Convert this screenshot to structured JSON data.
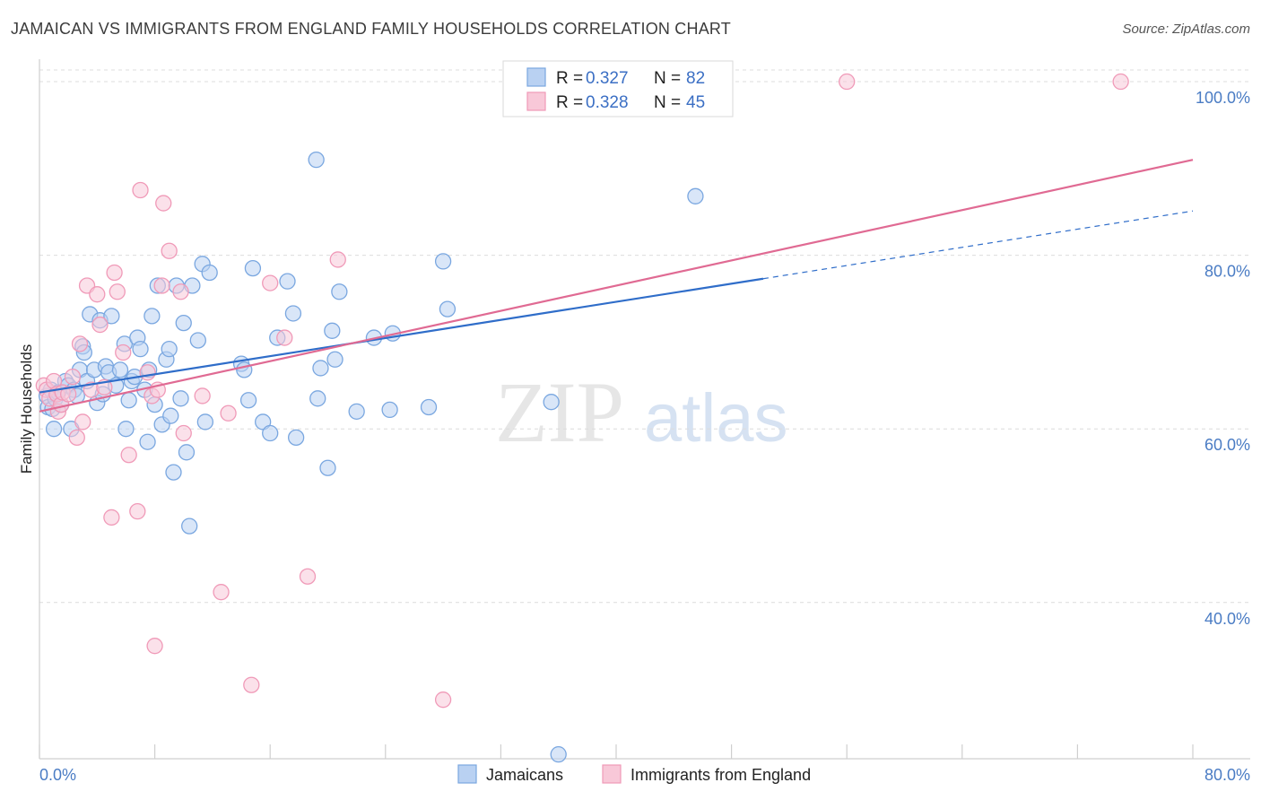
{
  "title": "JAMAICAN VS IMMIGRANTS FROM ENGLAND FAMILY HOUSEHOLDS CORRELATION CHART",
  "source": "Source: ZipAtlas.com",
  "colors": {
    "blue": "#7aa7e0",
    "blue_fill": "#b9d1f2",
    "blue_line": "#2f6dc9",
    "pink": "#f09ab8",
    "pink_fill": "#f8c8d8",
    "pink_line": "#e06a93",
    "tick_text": "#4a7cc4",
    "grid": "#dcdcdc"
  },
  "legend": {
    "rows": [
      {
        "r_label": "R =",
        "r_value": "0.327",
        "n_label": "N =",
        "n_value": "82"
      },
      {
        "r_label": "R =",
        "r_value": "0.328",
        "n_label": "N =",
        "n_value": "45"
      }
    ]
  },
  "watermark": {
    "zip": "ZIP",
    "atlas": "atlas"
  },
  "chart_data": {
    "type": "scatter",
    "title": "JAMAICAN VS IMMIGRANTS FROM ENGLAND FAMILY HOUSEHOLDS CORRELATION CHART",
    "xlabel": "",
    "ylabel": "Family Households",
    "xlim": [
      0,
      80
    ],
    "ylim": [
      22,
      103
    ],
    "x_tick_labels": [
      "0.0%",
      "80.0%"
    ],
    "y_ticks": [
      40,
      60,
      80,
      100
    ],
    "y_tick_labels": [
      "40.0%",
      "60.0%",
      "80.0%",
      "100.0%"
    ],
    "grid": true,
    "legend_position": "top-center",
    "series": [
      {
        "name": "Jamaicans",
        "trend": {
          "x0": 0,
          "y0": 64.2,
          "x1": 50.2,
          "y1": 77.3,
          "dashed_to_x": 80,
          "dashed_to_y": 85.1
        },
        "points": [
          [
            0.5,
            63.8
          ],
          [
            0.6,
            62.5
          ],
          [
            0.8,
            64.5
          ],
          [
            0.9,
            62.3
          ],
          [
            1.0,
            60.0
          ],
          [
            1.1,
            63.5
          ],
          [
            1.3,
            64.2
          ],
          [
            1.5,
            62.8
          ],
          [
            1.8,
            65.5
          ],
          [
            2.0,
            65.0
          ],
          [
            2.2,
            60.0
          ],
          [
            2.4,
            64.5
          ],
          [
            2.6,
            63.8
          ],
          [
            2.8,
            66.8
          ],
          [
            3.0,
            69.5
          ],
          [
            3.1,
            68.8
          ],
          [
            3.3,
            65.5
          ],
          [
            3.5,
            73.2
          ],
          [
            3.8,
            66.8
          ],
          [
            4.0,
            63.0
          ],
          [
            4.2,
            72.5
          ],
          [
            4.4,
            64.0
          ],
          [
            4.6,
            67.2
          ],
          [
            4.8,
            66.5
          ],
          [
            5.0,
            73.0
          ],
          [
            5.3,
            65.0
          ],
          [
            5.6,
            66.8
          ],
          [
            5.9,
            69.8
          ],
          [
            6.0,
            60.0
          ],
          [
            6.2,
            63.3
          ],
          [
            6.4,
            65.5
          ],
          [
            6.6,
            66.0
          ],
          [
            6.8,
            70.5
          ],
          [
            7.0,
            69.2
          ],
          [
            7.3,
            64.5
          ],
          [
            7.5,
            58.5
          ],
          [
            7.6,
            66.8
          ],
          [
            7.8,
            73.0
          ],
          [
            8.0,
            62.8
          ],
          [
            8.2,
            76.5
          ],
          [
            8.5,
            60.5
          ],
          [
            8.8,
            68.0
          ],
          [
            9.0,
            69.2
          ],
          [
            9.1,
            61.5
          ],
          [
            9.3,
            55.0
          ],
          [
            9.5,
            76.5
          ],
          [
            9.8,
            63.5
          ],
          [
            10.0,
            72.2
          ],
          [
            10.2,
            57.3
          ],
          [
            10.4,
            48.8
          ],
          [
            10.6,
            76.5
          ],
          [
            11.0,
            70.2
          ],
          [
            11.3,
            79.0
          ],
          [
            11.5,
            60.8
          ],
          [
            11.8,
            78.0
          ],
          [
            14.0,
            67.5
          ],
          [
            14.2,
            66.8
          ],
          [
            14.5,
            63.3
          ],
          [
            14.8,
            78.5
          ],
          [
            15.5,
            60.8
          ],
          [
            16.0,
            59.5
          ],
          [
            16.5,
            70.5
          ],
          [
            17.2,
            77.0
          ],
          [
            17.6,
            73.3
          ],
          [
            17.8,
            59.0
          ],
          [
            19.3,
            63.5
          ],
          [
            19.5,
            67.0
          ],
          [
            19.2,
            91.0
          ],
          [
            20.0,
            55.5
          ],
          [
            20.3,
            71.3
          ],
          [
            20.5,
            68.0
          ],
          [
            20.8,
            75.8
          ],
          [
            22.0,
            62.0
          ],
          [
            23.2,
            70.5
          ],
          [
            24.3,
            62.2
          ],
          [
            24.5,
            71.0
          ],
          [
            27.0,
            62.5
          ],
          [
            28.0,
            79.3
          ],
          [
            28.3,
            73.8
          ],
          [
            35.5,
            63.1
          ],
          [
            45.5,
            86.8
          ],
          [
            36.0,
            22.5
          ]
        ]
      },
      {
        "name": "Immigrants from England",
        "trend": {
          "x0": 0,
          "y0": 62.0,
          "x1": 80,
          "y1": 91.0
        },
        "points": [
          [
            0.3,
            65.0
          ],
          [
            0.5,
            64.5
          ],
          [
            0.7,
            63.5
          ],
          [
            1.0,
            65.5
          ],
          [
            1.2,
            64.0
          ],
          [
            1.3,
            62.0
          ],
          [
            1.5,
            62.8
          ],
          [
            1.6,
            64.2
          ],
          [
            2.0,
            64.0
          ],
          [
            2.3,
            66.0
          ],
          [
            2.6,
            59.0
          ],
          [
            2.8,
            69.8
          ],
          [
            3.0,
            60.8
          ],
          [
            3.3,
            76.5
          ],
          [
            3.6,
            64.5
          ],
          [
            4.0,
            75.5
          ],
          [
            4.2,
            72.0
          ],
          [
            4.5,
            64.8
          ],
          [
            5.0,
            49.8
          ],
          [
            5.2,
            78.0
          ],
          [
            5.4,
            75.8
          ],
          [
            5.8,
            68.8
          ],
          [
            6.2,
            57.0
          ],
          [
            6.8,
            50.5
          ],
          [
            7.0,
            87.5
          ],
          [
            7.5,
            66.5
          ],
          [
            7.8,
            63.8
          ],
          [
            8.0,
            35.0
          ],
          [
            8.2,
            64.5
          ],
          [
            8.5,
            76.5
          ],
          [
            8.6,
            86.0
          ],
          [
            9.0,
            80.5
          ],
          [
            9.8,
            75.8
          ],
          [
            10.0,
            59.5
          ],
          [
            11.3,
            63.8
          ],
          [
            12.6,
            41.2
          ],
          [
            13.1,
            61.8
          ],
          [
            14.7,
            30.5
          ],
          [
            16.0,
            76.8
          ],
          [
            17.0,
            70.5
          ],
          [
            18.6,
            43.0
          ],
          [
            20.7,
            79.5
          ],
          [
            28.0,
            28.8
          ],
          [
            56.0,
            100.0
          ],
          [
            75.0,
            100.0
          ]
        ]
      }
    ]
  },
  "bottom_legend": {
    "items": [
      {
        "label": "Jamaicans"
      },
      {
        "label": "Immigrants from England"
      }
    ]
  }
}
